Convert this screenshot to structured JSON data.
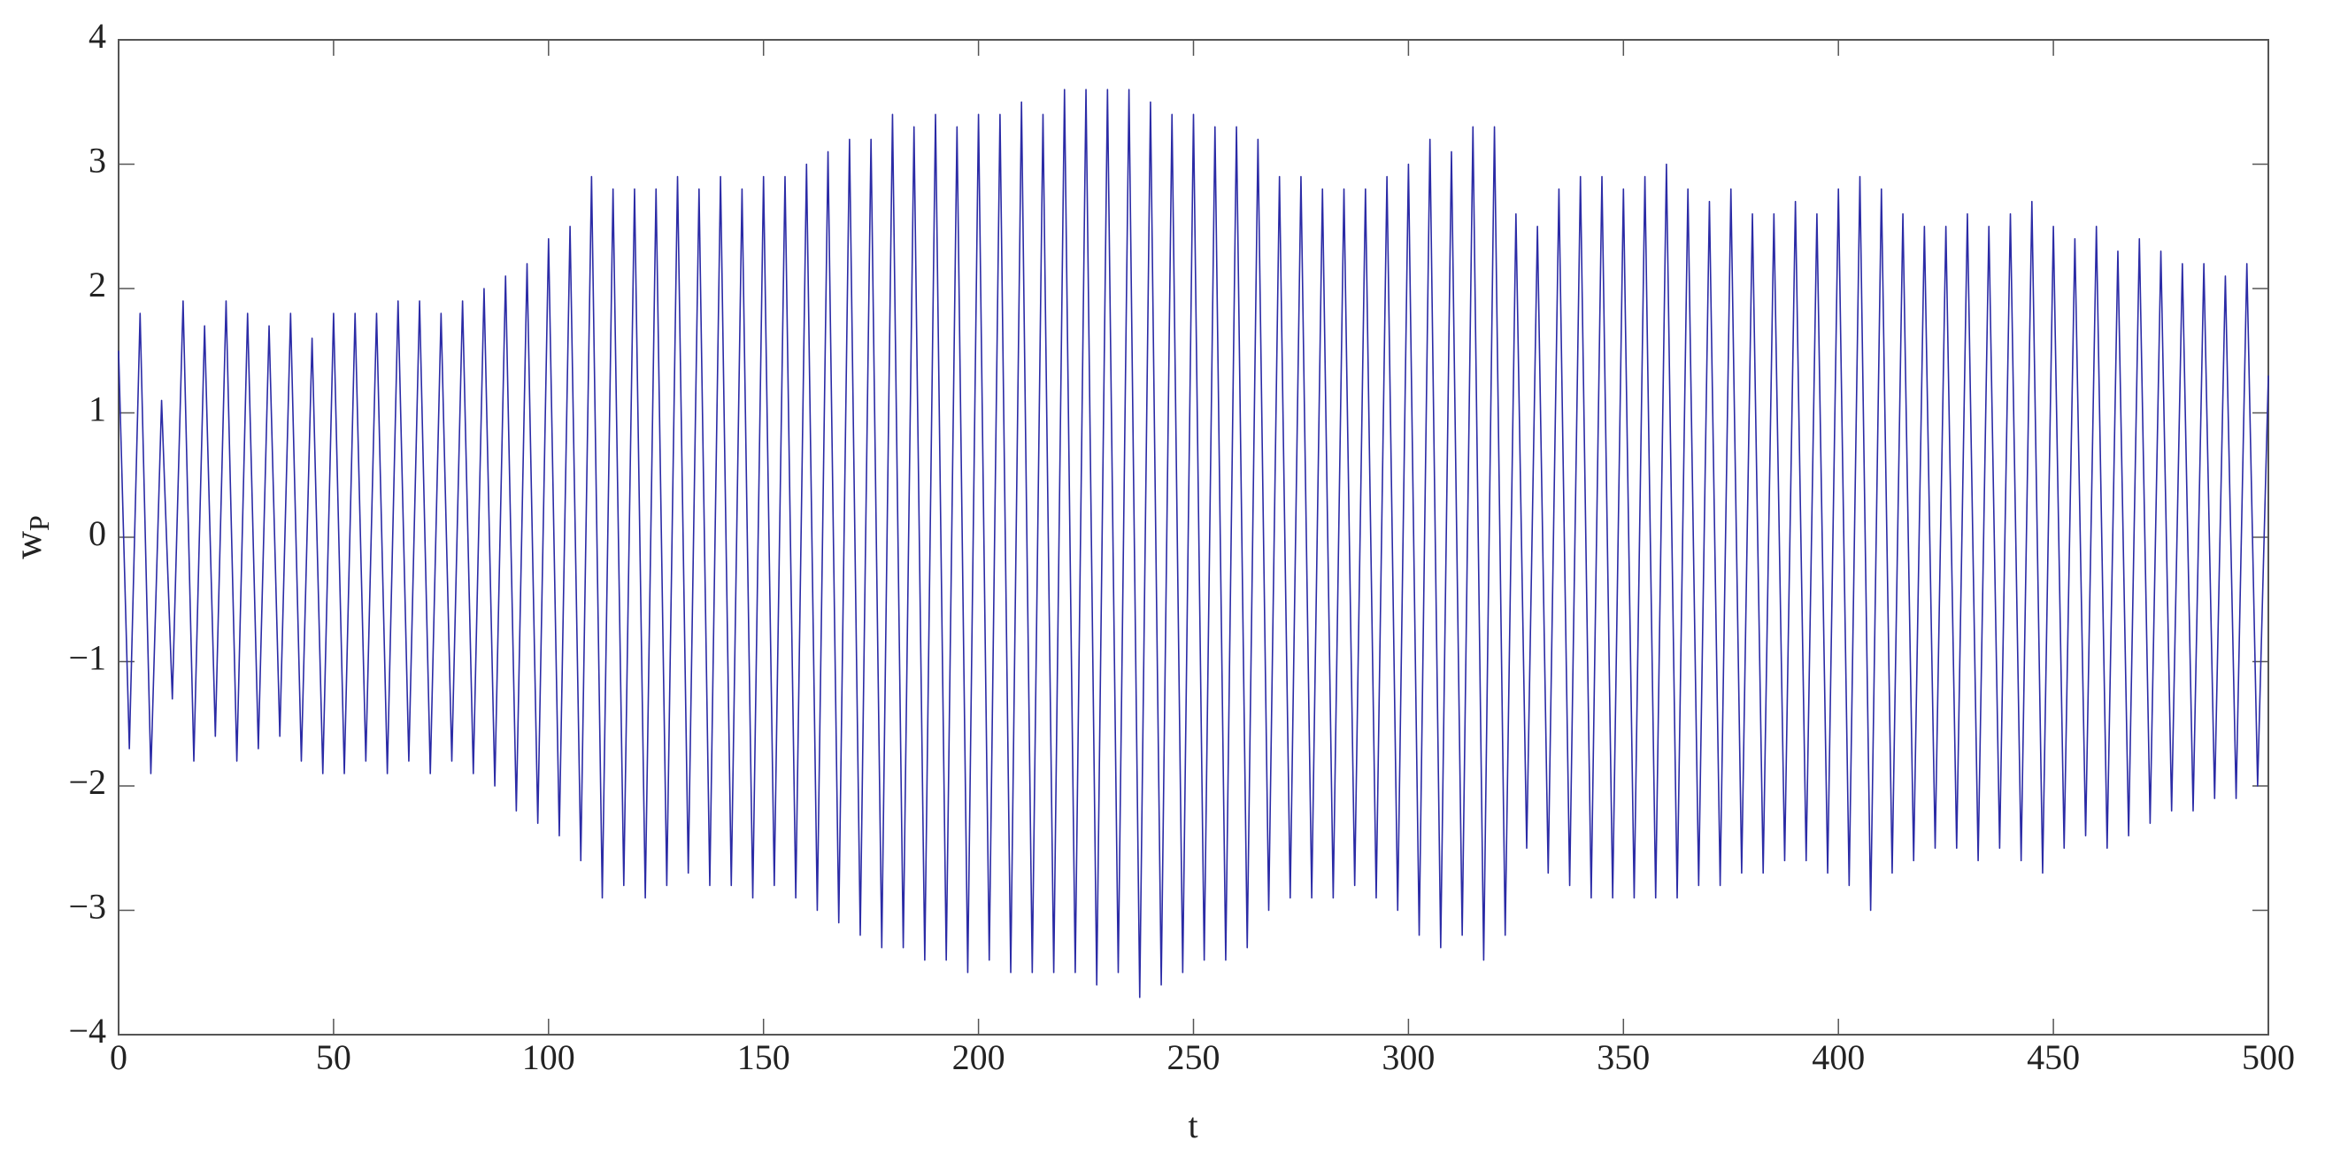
{
  "chart_data": {
    "type": "line",
    "xlabel": "t",
    "ylabel": "w",
    "ylabel_sub": "P",
    "color": "#2b2ba6",
    "xlim": [
      0,
      500
    ],
    "xticks": [
      0,
      50,
      100,
      150,
      200,
      250,
      300,
      350,
      400,
      450,
      500
    ],
    "ylim": [
      -4,
      4
    ],
    "yticks": [
      -4,
      -3,
      -2,
      -1,
      0,
      1,
      2,
      3,
      4
    ],
    "grid": false,
    "x": [
      0,
      2.5,
      5,
      7.5,
      10,
      12.5,
      15,
      17.5,
      20,
      22.5,
      25,
      27.5,
      30,
      32.5,
      35,
      37.5,
      40,
      42.5,
      45,
      47.5,
      50,
      52.5,
      55,
      57.5,
      60,
      62.5,
      65,
      67.5,
      70,
      72.5,
      75,
      77.5,
      80,
      82.5,
      85,
      87.5,
      90,
      92.5,
      95,
      97.5,
      100,
      102.5,
      105,
      107.5,
      110,
      112.5,
      115,
      117.5,
      120,
      122.5,
      125,
      127.5,
      130,
      132.5,
      135,
      137.5,
      140,
      142.5,
      145,
      147.5,
      150,
      152.5,
      155,
      157.5,
      160,
      162.5,
      165,
      167.5,
      170,
      172.5,
      175,
      177.5,
      180,
      182.5,
      185,
      187.5,
      190,
      192.5,
      195,
      197.5,
      200,
      202.5,
      205,
      207.5,
      210,
      212.5,
      215,
      217.5,
      220,
      222.5,
      225,
      227.5,
      230,
      232.5,
      235,
      237.5,
      240,
      242.5,
      245,
      247.5,
      250,
      252.5,
      255,
      257.5,
      260,
      262.5,
      265,
      267.5,
      270,
      272.5,
      275,
      277.5,
      280,
      282.5,
      285,
      287.5,
      290,
      292.5,
      295,
      297.5,
      300,
      302.5,
      305,
      307.5,
      310,
      312.5,
      315,
      317.5,
      320,
      322.5,
      325,
      327.5,
      330,
      332.5,
      335,
      337.5,
      340,
      342.5,
      345,
      347.5,
      350,
      352.5,
      355,
      357.5,
      360,
      362.5,
      365,
      367.5,
      370,
      372.5,
      375,
      377.5,
      380,
      382.5,
      385,
      387.5,
      390,
      392.5,
      395,
      397.5,
      400,
      402.5,
      405,
      407.5,
      410,
      412.5,
      415,
      417.5,
      420,
      422.5,
      425,
      427.5,
      430,
      432.5,
      435,
      437.5,
      440,
      442.5,
      445,
      447.5,
      450,
      452.5,
      455,
      457.5,
      460,
      462.5,
      465,
      467.5,
      470,
      472.5,
      475,
      477.5,
      480,
      482.5,
      485,
      487.5,
      490,
      492.5,
      495,
      497.5,
      500
    ],
    "values": [
      1.5,
      -1.7,
      1.8,
      -1.9,
      1.1,
      -1.3,
      1.9,
      -1.8,
      1.7,
      -1.6,
      1.9,
      -1.8,
      1.8,
      -1.7,
      1.7,
      -1.6,
      1.8,
      -1.8,
      1.6,
      -1.9,
      1.8,
      -1.9,
      1.8,
      -1.8,
      1.8,
      -1.9,
      1.9,
      -1.8,
      1.9,
      -1.9,
      1.8,
      -1.8,
      1.9,
      -1.9,
      2.0,
      -2.0,
      2.1,
      -2.2,
      2.2,
      -2.3,
      2.4,
      -2.4,
      2.5,
      -2.6,
      2.9,
      -2.9,
      2.8,
      -2.8,
      2.8,
      -2.9,
      2.8,
      -2.8,
      2.9,
      -2.7,
      2.8,
      -2.8,
      2.9,
      -2.8,
      2.8,
      -2.9,
      2.9,
      -2.8,
      2.9,
      -2.9,
      3.0,
      -3.0,
      3.1,
      -3.1,
      3.2,
      -3.2,
      3.2,
      -3.3,
      3.4,
      -3.3,
      3.3,
      -3.4,
      3.4,
      -3.4,
      3.3,
      -3.5,
      3.4,
      -3.4,
      3.4,
      -3.5,
      3.5,
      -3.5,
      3.4,
      -3.5,
      3.6,
      -3.5,
      3.6,
      -3.6,
      3.6,
      -3.5,
      3.6,
      -3.7,
      3.5,
      -3.6,
      3.4,
      -3.5,
      3.4,
      -3.4,
      3.3,
      -3.4,
      3.3,
      -3.3,
      3.2,
      -3.0,
      2.9,
      -2.9,
      2.9,
      -2.9,
      2.8,
      -2.9,
      2.8,
      -2.8,
      2.8,
      -2.9,
      2.9,
      -3.0,
      3.0,
      -3.2,
      3.2,
      -3.3,
      3.1,
      -3.2,
      3.3,
      -3.4,
      3.3,
      -3.2,
      2.6,
      -2.5,
      2.5,
      -2.7,
      2.8,
      -2.8,
      2.9,
      -2.9,
      2.9,
      -2.9,
      2.8,
      -2.9,
      2.9,
      -2.9,
      3.0,
      -2.9,
      2.8,
      -2.8,
      2.7,
      -2.8,
      2.8,
      -2.7,
      2.6,
      -2.7,
      2.6,
      -2.6,
      2.7,
      -2.6,
      2.6,
      -2.7,
      2.8,
      -2.8,
      2.9,
      -3.0,
      2.8,
      -2.7,
      2.6,
      -2.6,
      2.5,
      -2.5,
      2.5,
      -2.5,
      2.6,
      -2.6,
      2.5,
      -2.5,
      2.6,
      -2.6,
      2.7,
      -2.7,
      2.5,
      -2.5,
      2.4,
      -2.4,
      2.5,
      -2.5,
      2.3,
      -2.4,
      2.4,
      -2.3,
      2.3,
      -2.2,
      2.2,
      -2.2,
      2.2,
      -2.1,
      2.1,
      -2.1,
      2.2,
      -2.0,
      1.3
    ]
  }
}
